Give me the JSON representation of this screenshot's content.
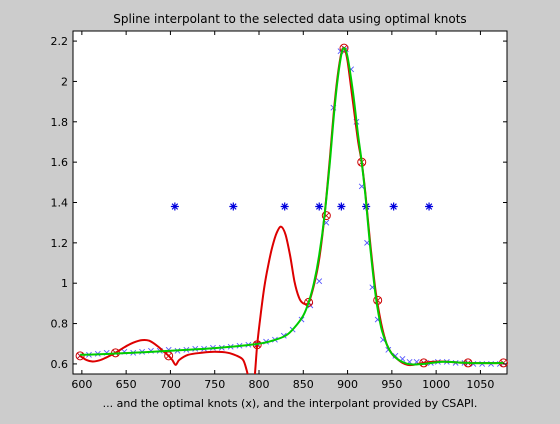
{
  "chart_data": {
    "type": "line",
    "title": "Spline interpolant to the selected data using optimal knots",
    "xlabel": "...  and the optimal knots (x), and the interpolant provided by CSAPI.",
    "ylabel": "",
    "xlim": [
      590,
      1080
    ],
    "ylim": [
      0.55,
      2.25
    ],
    "xticks": [
      600,
      650,
      700,
      750,
      800,
      850,
      900,
      950,
      1000,
      1050
    ],
    "yticks": [
      0.6,
      0.8,
      1,
      1.2,
      1.4,
      1.6,
      1.8,
      2,
      2.2
    ],
    "ytick_labels": [
      "0.6",
      "0.8",
      "1",
      "1.2",
      "1.4",
      "1.6",
      "1.8",
      "2",
      "2.2"
    ],
    "grid": false,
    "colors": {
      "data": "#5555ff",
      "selected": "#cc0000",
      "knots": "#0000dd",
      "csapi": "#dd0000",
      "optimal": "#00cc00"
    },
    "series": [
      {
        "kind": "markers-x",
        "color_key": "data",
        "x": [
          598,
          608,
          618,
          628,
          638,
          648,
          658,
          668,
          678,
          688,
          698,
          708,
          718,
          728,
          738,
          748,
          758,
          768,
          778,
          788,
          798,
          808,
          818,
          828,
          838,
          848,
          858,
          868,
          876,
          884,
          892,
          898,
          904,
          910,
          916,
          922,
          928,
          934,
          940,
          946,
          954,
          962,
          970,
          978,
          986,
          994,
          1002,
          1012,
          1022,
          1032,
          1042,
          1052,
          1062,
          1072
        ],
        "y": [
          0.64,
          0.645,
          0.65,
          0.655,
          0.655,
          0.66,
          0.655,
          0.66,
          0.665,
          0.665,
          0.67,
          0.665,
          0.67,
          0.675,
          0.675,
          0.68,
          0.68,
          0.685,
          0.69,
          0.695,
          0.7,
          0.71,
          0.72,
          0.74,
          0.77,
          0.82,
          0.89,
          1.01,
          1.3,
          1.87,
          2.15,
          2.16,
          2.06,
          1.8,
          1.48,
          1.2,
          0.98,
          0.82,
          0.72,
          0.67,
          0.64,
          0.625,
          0.61,
          0.61,
          0.605,
          0.605,
          0.61,
          0.61,
          0.605,
          0.605,
          0.6,
          0.6,
          0.6,
          0.6
        ]
      },
      {
        "kind": "markers-circle",
        "color_key": "selected",
        "x": [
          598,
          638,
          698,
          798,
          856,
          876,
          896,
          916,
          934,
          986,
          1036,
          1076
        ],
        "y": [
          0.64,
          0.655,
          0.64,
          0.695,
          0.905,
          1.335,
          2.165,
          1.6,
          0.915,
          0.605,
          0.605,
          0.605
        ]
      },
      {
        "kind": "markers-star",
        "color_key": "knots",
        "x": [
          705,
          771,
          829,
          868,
          893,
          921,
          952,
          992
        ],
        "y": [
          1.38,
          1.38,
          1.38,
          1.38,
          1.38,
          1.38,
          1.38,
          1.38
        ]
      },
      {
        "kind": "line",
        "color_key": "csapi",
        "x": [
          598,
          605,
          612,
          620,
          628,
          638,
          648,
          658,
          668,
          676,
          685,
          692,
          698,
          702,
          706,
          710,
          720,
          735,
          750,
          765,
          775,
          782,
          786,
          790,
          794,
          798,
          802,
          806,
          810,
          815,
          820,
          825,
          830,
          835,
          840,
          845,
          850,
          856,
          862,
          868,
          874,
          880,
          886,
          892,
          896,
          900,
          906,
          912,
          916,
          920,
          926,
          932,
          938,
          944,
          950,
          956,
          962,
          968,
          974,
          980,
          986,
          995,
          1005,
          1015,
          1025,
          1036,
          1045,
          1055,
          1065,
          1076
        ],
        "y": [
          0.64,
          0.62,
          0.612,
          0.618,
          0.633,
          0.655,
          0.683,
          0.705,
          0.718,
          0.715,
          0.69,
          0.663,
          0.64,
          0.62,
          0.595,
          0.62,
          0.645,
          0.655,
          0.66,
          0.655,
          0.64,
          0.62,
          0.57,
          0.5,
          0.49,
          0.695,
          0.85,
          0.98,
          1.08,
          1.18,
          1.25,
          1.28,
          1.24,
          1.14,
          1.01,
          0.93,
          0.9,
          0.905,
          0.99,
          1.12,
          1.335,
          1.62,
          1.92,
          2.12,
          2.165,
          2.1,
          1.9,
          1.7,
          1.6,
          1.45,
          1.18,
          0.95,
          0.8,
          0.7,
          0.65,
          0.625,
          0.605,
          0.595,
          0.595,
          0.6,
          0.605,
          0.61,
          0.612,
          0.61,
          0.607,
          0.605,
          0.604,
          0.604,
          0.604,
          0.605
        ]
      },
      {
        "kind": "line",
        "color_key": "optimal",
        "x": [
          598,
          620,
          640,
          660,
          680,
          700,
          720,
          740,
          760,
          780,
          800,
          815,
          830,
          840,
          850,
          856,
          862,
          868,
          874,
          880,
          886,
          892,
          896,
          900,
          906,
          912,
          916,
          920,
          926,
          932,
          938,
          944,
          950,
          956,
          962,
          968,
          974,
          980,
          986,
          995,
          1005,
          1015,
          1025,
          1036,
          1045,
          1055,
          1065,
          1076
        ],
        "y": [
          0.645,
          0.648,
          0.652,
          0.656,
          0.66,
          0.665,
          0.67,
          0.675,
          0.682,
          0.69,
          0.7,
          0.715,
          0.74,
          0.78,
          0.84,
          0.905,
          1.0,
          1.14,
          1.335,
          1.6,
          1.9,
          2.11,
          2.165,
          2.12,
          1.95,
          1.73,
          1.6,
          1.44,
          1.16,
          0.93,
          0.78,
          0.7,
          0.65,
          0.625,
          0.61,
          0.6,
          0.597,
          0.598,
          0.6,
          0.605,
          0.61,
          0.61,
          0.607,
          0.605,
          0.604,
          0.604,
          0.604,
          0.605
        ]
      }
    ]
  }
}
